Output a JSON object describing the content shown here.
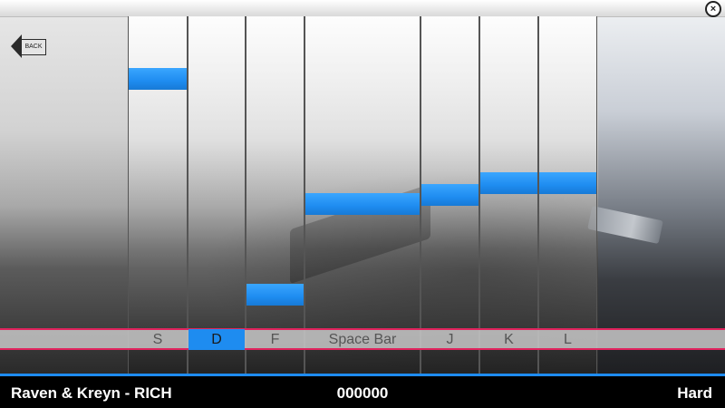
{
  "window": {
    "close_icon": "close-icon",
    "back_label": "BACK",
    "back_icon": "back-arrow-icon"
  },
  "lanes": [
    {
      "key": "S",
      "note_level": 0.17,
      "active": false
    },
    {
      "key": "D",
      "note_level": null,
      "active": true
    },
    {
      "key": "F",
      "note_level": 0.78,
      "active": false
    },
    {
      "key": "Space Bar",
      "note_level": 0.52,
      "active": false
    },
    {
      "key": "J",
      "note_level": 0.49,
      "active": false
    },
    {
      "key": "K",
      "note_level": 0.45,
      "active": false
    },
    {
      "key": "L",
      "note_level": 0.45,
      "active": false
    }
  ],
  "status": {
    "song": "Raven & Kreyn - RICH",
    "score": "000000",
    "difficulty": "Hard"
  },
  "colors": {
    "accent": "#1e8cf0",
    "hit_line": "#e0245e",
    "bar_bg": "#000000"
  }
}
